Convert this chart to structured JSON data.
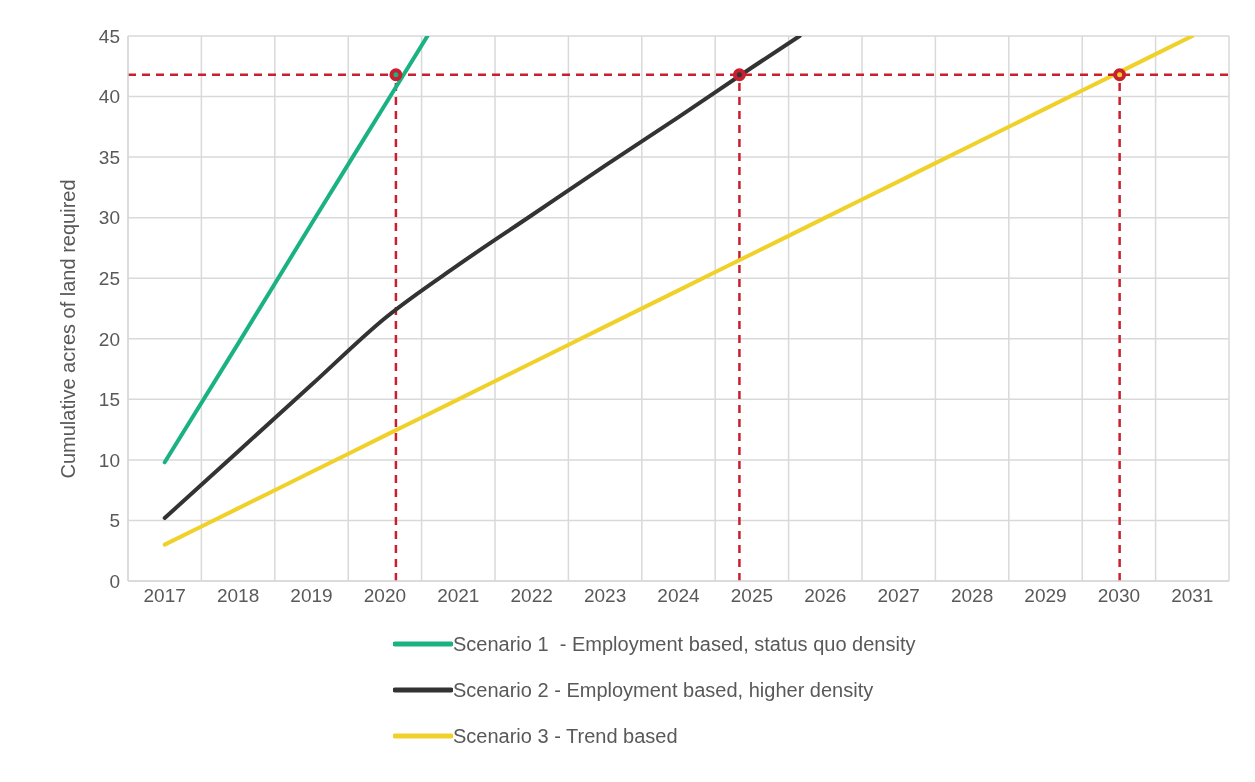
{
  "chart_data": {
    "type": "line",
    "ylabel": "Cumulative acres of land required",
    "xlim": [
      2016.5,
      2031.5
    ],
    "xticks": [
      {
        "value": 2016.5,
        "label": null
      },
      2017,
      {
        "value": 2017.5,
        "label": null
      },
      2018,
      {
        "value": 2018.5,
        "label": null
      },
      2019,
      {
        "value": 2019.5,
        "label": null
      },
      2020,
      {
        "value": 2020.5,
        "label": null
      },
      2021,
      {
        "value": 2021.5,
        "label": null
      },
      2022,
      {
        "value": 2022.5,
        "label": null
      },
      2023,
      {
        "value": 2023.5,
        "label": null
      },
      2024,
      {
        "value": 2024.5,
        "label": null
      },
      2025,
      {
        "value": 2025.5,
        "label": null
      },
      2026,
      {
        "value": 2026.5,
        "label": null
      },
      2027,
      {
        "value": 2027.5,
        "label": null
      },
      2028,
      {
        "value": 2028.5,
        "label": null
      },
      2029,
      {
        "value": 2029.5,
        "label": null
      },
      2030,
      {
        "value": 2030.5,
        "label": null
      },
      2031,
      {
        "value": 2031.5,
        "label": null
      }
    ],
    "ylim": [
      0,
      45
    ],
    "yticks": [
      0,
      5,
      10,
      15,
      20,
      25,
      30,
      35,
      40,
      45
    ],
    "grid": true,
    "legend": "bottom",
    "marker": "none",
    "line_style": "solid",
    "series": [
      {
        "name": "Scenario 1  - Employment based, status quo density",
        "color": "#1bb283",
        "x": [
          2017,
          2018,
          2019,
          2020,
          2020.58
        ],
        "values": [
          9.8,
          19.6,
          29.5,
          39.3,
          45
        ]
      },
      {
        "name": "Scenario 2 - Employment based, higher density",
        "color": "#333333",
        "x": [
          2017,
          2018,
          2019,
          2020,
          2021,
          2022,
          2023,
          2024,
          2025,
          2025.65
        ],
        "values": [
          5.2,
          10.7,
          16.2,
          21.7,
          26.1,
          30.2,
          34.3,
          38.3,
          42.4,
          45
        ]
      },
      {
        "name": "Scenario 3 - Trend based",
        "color": "#f0d12a",
        "x": [
          2017,
          2018,
          2019,
          2020,
          2021,
          2022,
          2023,
          2024,
          2025,
          2026,
          2027,
          2028,
          2029,
          2030,
          2031
        ],
        "values": [
          3,
          6,
          9,
          12,
          15,
          18,
          21,
          24,
          27,
          30,
          33,
          36,
          39,
          42,
          45
        ]
      },
      {
        "type": "scatter",
        "marker": "circle",
        "x": [
          2020.15,
          2024.83,
          2030.01
        ],
        "values": [
          41.8,
          41.8,
          41.8
        ],
        "colors": [
          "#1bb283",
          "#333333",
          "#f0d12a"
        ]
      }
    ],
    "ref_lines": [
      {
        "axis": "y",
        "value": 41.8,
        "color": "#c8202f",
        "line_style": "dashed"
      },
      {
        "axis": "x",
        "value": 2020.15,
        "color": "#c8202f",
        "line_style": "dashed"
      },
      {
        "axis": "x",
        "value": 2024.83,
        "color": "#c8202f",
        "line_style": "dashed"
      },
      {
        "axis": "x",
        "value": 2030.01,
        "color": "#c8202f",
        "line_style": "dashed"
      }
    ]
  }
}
